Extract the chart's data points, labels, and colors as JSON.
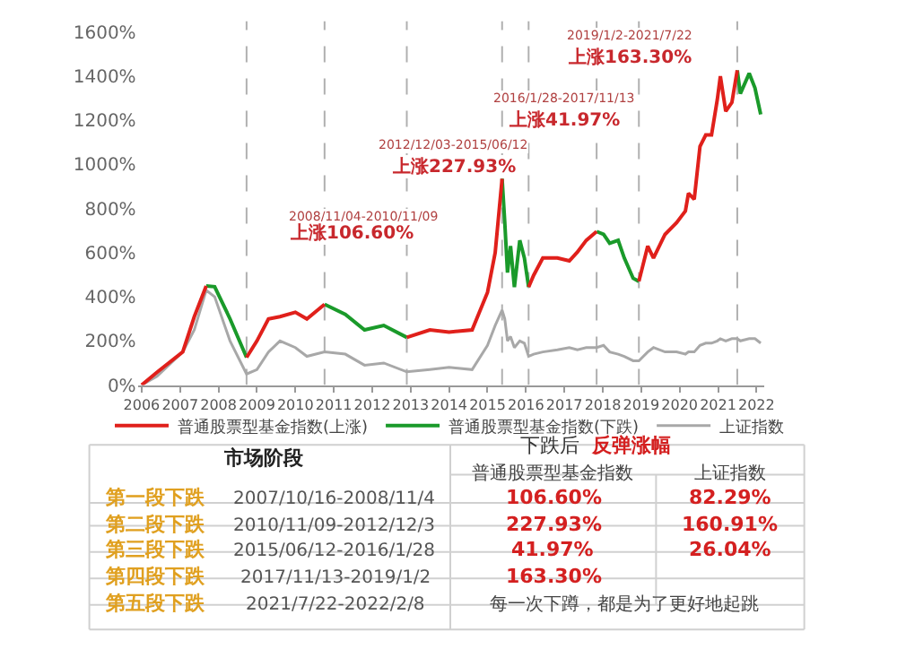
{
  "chart_data": [
    {
      "type": "line",
      "x": [
        2006.0,
        2006.4,
        2007.07,
        2007.37,
        2007.68,
        2007.9,
        2008.3,
        2008.73,
        2009.0,
        2009.3,
        2009.6,
        2010.0,
        2010.3,
        2010.76,
        2011.3,
        2011.8,
        2012.3,
        2012.9,
        2013.5,
        2014.0,
        2014.6,
        2015.0,
        2015.2,
        2015.38,
        2015.45,
        2015.52,
        2015.6,
        2015.7,
        2015.84,
        2015.96,
        2016.07,
        2016.2,
        2016.44,
        2016.82,
        2017.13,
        2017.34,
        2017.57,
        2017.84,
        2018.02,
        2018.18,
        2018.4,
        2018.56,
        2018.79,
        2018.94,
        2019.17,
        2019.32,
        2019.62,
        2019.92,
        2020.15,
        2020.23,
        2020.38,
        2020.53,
        2020.68,
        2020.83,
        2020.98,
        2021.06,
        2021.2,
        2021.36,
        2021.5,
        2021.58,
        2021.81,
        2021.96,
        2022.11
      ],
      "series": [
        {
          "name": "普通股票型基金指数(上涨)",
          "color": "#e0201b",
          "values": [
            0,
            58,
            150,
            310,
            449,
            null,
            null,
            125,
            200,
            300,
            310,
            330,
            300,
            366,
            null,
            null,
            null,
            216,
            250,
            240,
            250,
            420,
            600,
            935,
            null,
            null,
            null,
            null,
            null,
            null,
            444,
            497,
            576,
            576,
            563,
            603,
            656,
            696,
            null,
            null,
            null,
            null,
            null,
            470,
            630,
            576,
            683,
            736,
            789,
            869,
            842,
            1082,
            1134,
            1134,
            1294,
            1400,
            1241,
            1281,
            1427,
            null,
            null,
            null,
            null
          ]
        },
        {
          "name": "普通股票型基金指数(下跌)",
          "color": "#1a9a2a",
          "values": [
            null,
            null,
            null,
            null,
            449,
            446,
            300,
            125,
            null,
            null,
            null,
            null,
            null,
            366,
            320,
            250,
            270,
            216,
            null,
            null,
            null,
            null,
            null,
            935,
            736,
            510,
            630,
            444,
            656,
            576,
            444,
            null,
            null,
            null,
            null,
            null,
            null,
            696,
            683,
            643,
            656,
            576,
            484,
            470,
            null,
            null,
            null,
            null,
            null,
            null,
            null,
            null,
            null,
            null,
            null,
            null,
            null,
            null,
            1427,
            1321,
            1413,
            1347,
            1227
          ]
        },
        {
          "name": "上证指数",
          "color": "#a8a8a8",
          "values": [
            0,
            40,
            150,
            250,
            430,
            400,
            200,
            50,
            70,
            150,
            200,
            170,
            130,
            150,
            140,
            90,
            100,
            60,
            70,
            80,
            70,
            180,
            270,
            340,
            300,
            200,
            220,
            170,
            200,
            190,
            130,
            140,
            150,
            160,
            170,
            160,
            170,
            170,
            180,
            150,
            140,
            130,
            110,
            110,
            150,
            170,
            150,
            150,
            140,
            150,
            150,
            180,
            190,
            190,
            200,
            210,
            200,
            210,
            210,
            200,
            210,
            210,
            190
          ]
        }
      ],
      "xlim": [
        2005.9,
        2022.2
      ],
      "xticks": [
        2006,
        2007,
        2008,
        2009,
        2010,
        2011,
        2012,
        2013,
        2014,
        2015,
        2016,
        2017,
        2018,
        2019,
        2020,
        2021,
        2022
      ],
      "ylim": [
        0,
        1650
      ],
      "yticks": [
        {
          "value": 0,
          "label": "0%"
        },
        {
          "value": 200,
          "label": "200%"
        },
        {
          "value": 400,
          "label": "400%"
        },
        {
          "value": 600,
          "label": "600%"
        },
        {
          "value": 800,
          "label": "800%"
        },
        {
          "value": 1000,
          "label": "1000%"
        },
        {
          "value": 1200,
          "label": "1200%"
        },
        {
          "value": 1400,
          "label": "1400%"
        },
        {
          "value": 1600,
          "label": "1600%"
        }
      ],
      "ref_lines": [
        {
          "axis": "x",
          "value": 2008.73,
          "color": "#b0b0b0",
          "line_style": "dashed"
        },
        {
          "axis": "x",
          "value": 2010.76,
          "color": "#b0b0b0",
          "line_style": "dashed"
        },
        {
          "axis": "x",
          "value": 2012.9,
          "color": "#b0b0b0",
          "line_style": "dashed"
        },
        {
          "axis": "x",
          "value": 2015.38,
          "color": "#b0b0b0",
          "line_style": "dashed"
        },
        {
          "axis": "x",
          "value": 2016.07,
          "color": "#b0b0b0",
          "line_style": "dashed"
        },
        {
          "axis": "x",
          "value": 2017.84,
          "color": "#b0b0b0",
          "line_style": "dashed"
        },
        {
          "axis": "x",
          "value": 2018.94,
          "color": "#b0b0b0",
          "line_style": "dashed"
        },
        {
          "axis": "x",
          "value": 2021.5,
          "color": "#b0b0b0",
          "line_style": "dashed"
        }
      ],
      "annotations": [
        "2008/11/04-2010/11/09",
        "上涨106.60%",
        "2012/12/03-2015/06/12",
        "上涨227.93%",
        "2016/1/28-2017/11/13",
        "上涨41.97%",
        "2019/1/2-2021/7/22",
        "上涨163.30%",
        "市场阶段",
        "下跌后",
        "反弹涨幅",
        "普通股票型基金指数",
        "上证指数",
        "第一段下跌",
        "2007/10/16-2008/11/4",
        "106.60%",
        "82.29%",
        "第二段下跌",
        "2010/11/09-2012/12/3",
        "227.93%",
        "160.91%",
        "第三段下跌",
        "2015/06/12-2016/1/28",
        "41.97%",
        "26.04%",
        "第四段下跌",
        "2017/11/13-2019/1/2",
        "163.30%",
        "第五段下跌",
        "2021/7/22-2022/2/8",
        "每一次下蹲，都是为了更好地起跳"
      ],
      "legend": "bottom",
      "grid": false
    }
  ]
}
